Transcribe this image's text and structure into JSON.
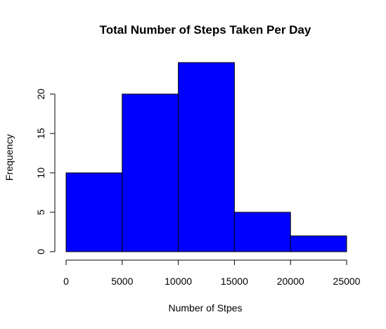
{
  "chart_data": {
    "type": "bar",
    "title": "Total Number of Steps Taken Per Day",
    "xlabel": "Number of Stpes",
    "ylabel": "Frequency",
    "bins": [
      {
        "from": 0,
        "to": 5000,
        "count": 10
      },
      {
        "from": 5000,
        "to": 10000,
        "count": 20
      },
      {
        "from": 10000,
        "to": 15000,
        "count": 24
      },
      {
        "from": 15000,
        "to": 20000,
        "count": 5
      },
      {
        "from": 20000,
        "to": 25000,
        "count": 2
      }
    ],
    "x_ticks": [
      0,
      5000,
      10000,
      15000,
      20000,
      25000
    ],
    "y_ticks": [
      0,
      5,
      10,
      15,
      20
    ],
    "xlim": [
      0,
      25000
    ],
    "ylim": [
      0,
      24
    ],
    "bar_color": "#0000FF",
    "bar_border_color": "#000000",
    "grid": false
  }
}
